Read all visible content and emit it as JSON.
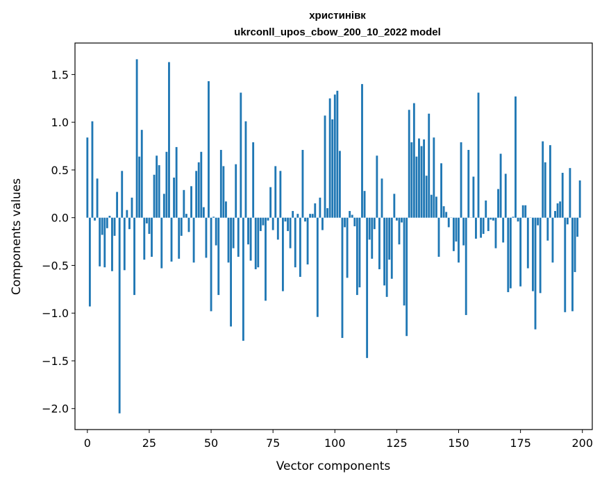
{
  "chart_data": {
    "type": "bar",
    "title": "христинівк",
    "subtitle": "ukrconll_upos_cbow_200_10_2022 model",
    "xlabel": "Vector components",
    "ylabel": "Components values",
    "xlim": [
      -5,
      204
    ],
    "ylim": [
      -2.22,
      1.83
    ],
    "grid": false,
    "x_ticks": [
      0,
      25,
      50,
      75,
      100,
      125,
      150,
      175,
      200
    ],
    "x_tick_labels": [
      "0",
      "25",
      "50",
      "75",
      "100",
      "125",
      "150",
      "175",
      "200"
    ],
    "y_ticks": [
      -2.0,
      -1.5,
      -1.0,
      -0.5,
      0.0,
      0.5,
      1.0,
      1.5
    ],
    "y_tick_labels": [
      "−2.0",
      "−1.5",
      "−1.0",
      "−0.5",
      "0.0",
      "0.5",
      "1.0",
      "1.5"
    ],
    "color": "#1f77b4",
    "values": [
      0.84,
      -0.93,
      1.01,
      -0.03,
      0.41,
      -0.51,
      -0.18,
      -0.52,
      -0.11,
      0.02,
      -0.56,
      -0.19,
      0.27,
      -2.05,
      0.49,
      -0.55,
      0.08,
      -0.12,
      0.21,
      -0.81,
      1.66,
      0.64,
      0.92,
      -0.44,
      -0.06,
      -0.17,
      -0.41,
      0.45,
      0.65,
      0.55,
      -0.53,
      0.25,
      0.69,
      1.63,
      -0.46,
      0.42,
      0.74,
      -0.43,
      -0.19,
      0.29,
      0.04,
      -0.15,
      0.33,
      -0.47,
      0.49,
      0.58,
      0.69,
      0.11,
      -0.42,
      1.43,
      -0.98,
      0.01,
      -0.29,
      -0.81,
      0.71,
      0.54,
      0.17,
      -0.47,
      -1.14,
      -0.32,
      0.56,
      -0.41,
      1.31,
      -1.29,
      1.01,
      -0.28,
      -0.45,
      0.79,
      -0.54,
      -0.52,
      -0.14,
      -0.08,
      -0.87,
      -0.03,
      0.32,
      -0.13,
      0.54,
      -0.23,
      0.49,
      -0.77,
      -0.04,
      -0.14,
      -0.32,
      0.07,
      -0.52,
      0.04,
      -0.62,
      0.71,
      -0.04,
      -0.49,
      0.04,
      0.04,
      0.15,
      -1.04,
      0.21,
      -0.13,
      1.07,
      0.1,
      1.25,
      1.03,
      1.29,
      1.33,
      0.7,
      -1.26,
      -0.1,
      -0.63,
      0.07,
      0.03,
      -0.09,
      -0.81,
      -0.73,
      1.4,
      0.28,
      -1.47,
      -0.23,
      -0.43,
      -0.12,
      0.65,
      -0.54,
      0.41,
      -0.71,
      -0.83,
      -0.44,
      -0.64,
      0.25,
      -0.03,
      -0.28,
      -0.05,
      -0.92,
      -1.24,
      1.13,
      0.79,
      1.2,
      0.64,
      0.83,
      0.75,
      0.82,
      0.44,
      1.09,
      0.24,
      0.84,
      0.22,
      -0.41,
      0.57,
      0.12,
      0.06,
      -0.1,
      0.0,
      -0.35,
      -0.25,
      -0.47,
      0.79,
      -0.29,
      -1.02,
      0.71,
      0.0,
      0.43,
      -0.22,
      1.31,
      -0.21,
      -0.17,
      0.18,
      -0.14,
      -0.02,
      -0.03,
      -0.32,
      0.3,
      0.67,
      -0.26,
      0.46,
      -0.78,
      -0.74,
      0.01,
      1.27,
      -0.04,
      -0.72,
      0.13,
      0.13,
      -0.53,
      0.0,
      -0.77,
      -1.17,
      -0.08,
      -0.79,
      0.8,
      0.58,
      -0.24,
      0.76,
      -0.47,
      0.07,
      0.15,
      0.17,
      0.47,
      -0.99,
      -0.07,
      0.52,
      -0.98,
      -0.57,
      -0.2,
      0.39
    ]
  }
}
